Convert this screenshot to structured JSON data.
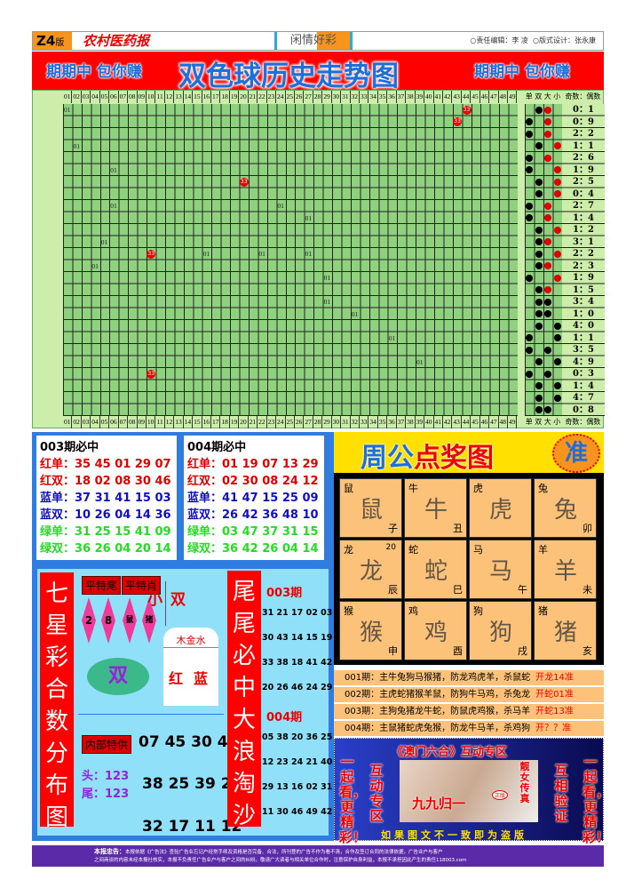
{
  "header": {
    "edition": "Z4",
    "edition_suffix": "版",
    "paper": "农村医药报",
    "column": "闲情好彩",
    "editor": "○责任编辑：李 凌",
    "designer": "○版式设计：张永康"
  },
  "banner": {
    "slogan": "期期中 包你赚",
    "title": "双色球历史走势图"
  },
  "grid": {
    "numbers": [
      "01",
      "02",
      "03",
      "04",
      "05",
      "06",
      "07",
      "08",
      "09",
      "10",
      "11",
      "12",
      "13",
      "14",
      "15",
      "16",
      "17",
      "18",
      "19",
      "20",
      "21",
      "22",
      "23",
      "24",
      "25",
      "26",
      "27",
      "28",
      "29",
      "30",
      "31",
      "32",
      "33",
      "34",
      "35",
      "36",
      "37",
      "38",
      "39",
      "40",
      "41",
      "42",
      "43",
      "44",
      "45",
      "46",
      "47",
      "48",
      "49"
    ],
    "side_headers": [
      "单",
      "双",
      "大",
      "小"
    ],
    "ratio_header": "奇数：偶数",
    "marks": [
      [
        0,
        1,
        "01"
      ],
      [
        0,
        44,
        "33"
      ],
      [
        1,
        43,
        "33"
      ],
      [
        3,
        2,
        "01"
      ],
      [
        5,
        6,
        "01"
      ],
      [
        6,
        20,
        "33"
      ],
      [
        8,
        6,
        "01"
      ],
      [
        8,
        24,
        "01"
      ],
      [
        9,
        27,
        "01"
      ],
      [
        11,
        5,
        "01"
      ],
      [
        12,
        10,
        "33"
      ],
      [
        12,
        16,
        "01"
      ],
      [
        12,
        22,
        "01"
      ],
      [
        12,
        27,
        "01"
      ],
      [
        13,
        4,
        "01"
      ],
      [
        14,
        29,
        "01"
      ],
      [
        16,
        29,
        "01"
      ],
      [
        17,
        32,
        "01"
      ],
      [
        19,
        36,
        "01"
      ],
      [
        21,
        39,
        "01"
      ],
      [
        22,
        10,
        "33"
      ]
    ],
    "dots": [
      ".br.",
      "b.r.",
      "b.r.",
      ".b.r",
      "b.r.",
      "b..r",
      ".b.r",
      ".b.r",
      "b.r.",
      "b.r.",
      ".b.r",
      ".br.",
      ".b.r",
      ".br.",
      "b..r",
      ".br.",
      ".bb.",
      ".bb.",
      ".b.b",
      "b..b",
      "b.b.",
      ".b.b",
      "b.b.",
      ".b.b",
      ".b.b",
      ".bb."
    ],
    "ratios": [
      "0：1",
      "0：9",
      "2：2",
      "1：1",
      "2：6",
      "1：9",
      "2：5",
      "0：4",
      "2：7",
      "1：4",
      "1：2",
      "3：1",
      "2：2",
      "2：3",
      "1：9",
      "1：5",
      "3：4",
      "1：0",
      "4：0",
      "1：1",
      "3：5",
      "4：9",
      "0：3",
      "1：4",
      "4：7",
      "0：8"
    ],
    "colors": {
      "cell": "#8fd17f",
      "red": "#e00000",
      "black": "#000000"
    }
  },
  "picks": [
    {
      "title": "003期必中",
      "rows": [
        {
          "label": "红单：",
          "nums": "35 45 01 29 07",
          "color": "#e00000"
        },
        {
          "label": "红双：",
          "nums": "18 02 08 30 46",
          "color": "#e00000"
        },
        {
          "label": "蓝单：",
          "nums": "37 31 41 15 03",
          "color": "#1010c0"
        },
        {
          "label": "蓝双：",
          "nums": "10 26 04 14 36",
          "color": "#1010c0"
        },
        {
          "label": "绿单：",
          "nums": "31 25 15 41 09",
          "color": "#22dd22"
        },
        {
          "label": "绿双：",
          "nums": "36 26 04 20 14",
          "color": "#22dd22"
        }
      ]
    },
    {
      "title": "004期必中",
      "rows": [
        {
          "label": "红单：",
          "nums": "01 19 07 13 29",
          "color": "#e00000"
        },
        {
          "label": "红双：",
          "nums": "02 30 08 24 12",
          "color": "#e00000"
        },
        {
          "label": "蓝单：",
          "nums": "41 47 15 25 09",
          "color": "#1010c0"
        },
        {
          "label": "蓝双：",
          "nums": "26 42 36 48 10",
          "color": "#1010c0"
        },
        {
          "label": "绿单：",
          "nums": "03 47 37 31 15",
          "color": "#22dd22"
        },
        {
          "label": "绿双：",
          "nums": "36 42 26 04 14",
          "color": "#22dd22"
        }
      ]
    }
  ],
  "seven": {
    "vertical_left": "七星彩合数分布图",
    "tag_tail": "平特尾",
    "tag_zodiac": "平特肖",
    "tails": [
      "2",
      "8"
    ],
    "zodiacs": [
      "鼠",
      "猪"
    ],
    "big_small": "小",
    "odd_even": "双",
    "elements": "木金水",
    "red": "红",
    "blue": "蓝",
    "oval": "双",
    "inner_tag": "内部特供",
    "line1": "07 45 30 40",
    "head": "头：123",
    "tail": "尾：123",
    "line2": "38 25 39 24",
    "line3": "32 17 11 12",
    "vertical_right": "尾尾必中大浪淘沙",
    "p003": "003期",
    "p003_nums": [
      "31 21 17 02 03",
      "30 43 14 15 19",
      "33 38 18 41 42",
      "20 26 46 24 29"
    ],
    "p004": "004期",
    "p004_nums": [
      "05 38 20 36 25",
      "12 23 24 21 40",
      "29 13 16 02 31",
      "11 30 46 49 42"
    ]
  },
  "zhougong": {
    "title_a": "周公",
    "title_b": "点奖图",
    "badge": "准",
    "animals": [
      {
        "name": "鼠",
        "branch": "子"
      },
      {
        "name": "牛",
        "branch": "丑"
      },
      {
        "name": "虎",
        "branch": ""
      },
      {
        "name": "兔",
        "branch": "卯"
      },
      {
        "name": "龙",
        "branch": "辰",
        "num": "20"
      },
      {
        "name": "蛇",
        "branch": "巳"
      },
      {
        "name": "马",
        "branch": "午"
      },
      {
        "name": "羊",
        "branch": "未"
      },
      {
        "name": "猴",
        "branch": "申"
      },
      {
        "name": "鸡",
        "branch": "酉"
      },
      {
        "name": "狗",
        "branch": "戌"
      },
      {
        "name": "猪",
        "branch": "亥"
      }
    ],
    "rows": [
      {
        "text": "001期：主牛兔狗马猴猪，防龙鸡虎羊，杀鼠蛇",
        "result": "开龙14准"
      },
      {
        "text": "002期：主虎蛇猪猴羊鼠，防狗牛马鸡，杀兔龙",
        "result": "开蛇01准"
      },
      {
        "text": "003期：主狗兔猪龙牛蛇，防鼠虎鸡猴，杀马羊",
        "result": "开蛇13准"
      },
      {
        "text": "004期：主鼠猪蛇虎兔猴，防龙牛马羊，杀鸡狗",
        "result": "开？？准"
      }
    ]
  },
  "ad": {
    "title": "《澳门六合》互动专区",
    "left_outer": "一起看，更精彩！",
    "left_inner": "互动专区",
    "right_inner": "互相验证",
    "right_outer": "一起看，更精彩！",
    "photo_text": "九九归一",
    "photo_tag": "靓女传真",
    "badge": "正版",
    "warning": "如果图文不一致即为盗版"
  },
  "footer": {
    "label": "本报忠告：",
    "line1": "本报依据《广告法》查验广告业忘记户经常手续及资格是否完备、合法，所刊登的广告不作为看不清，合作及签订合同的法律依据，广告业户与客户",
    "line2": "之间商谈的内容未经本报社核实，本报不负责任广告业户与客户之间的纠纷。敬请广大读者与相关单位合作时，注意保护自身利益，本报不承担因此产生的责任118003.com"
  }
}
